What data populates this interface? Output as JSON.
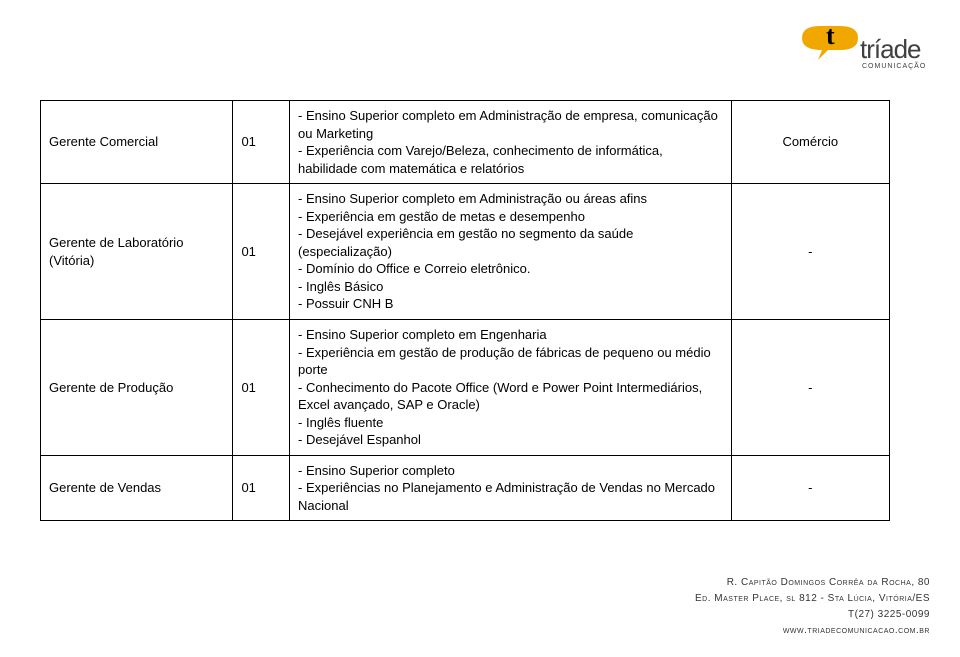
{
  "logo": {
    "brand": "tríade",
    "sub": "COMUNICAÇÃO"
  },
  "table": {
    "rows": [
      {
        "role": "Gerente Comercial",
        "qty": "01",
        "desc": "- Ensino Superior completo em Administração de empresa, comunicação ou Marketing\n- Experiência com Varejo/Beleza, conhecimento de informática, habilidade com matemática e relatórios",
        "sector": "Comércio"
      },
      {
        "role": "Gerente de Laboratório (Vitória)",
        "qty": "01",
        "desc": "- Ensino Superior completo em Administração ou áreas afins\n- Experiência em gestão de metas e desempenho\n- Desejável experiência em gestão no segmento da saúde (especialização)\n- Domínio do Office e Correio eletrônico.\n- Inglês Básico\n- Possuir CNH B",
        "sector": "-"
      },
      {
        "role": "Gerente de Produção",
        "qty": "01",
        "desc": "- Ensino Superior completo em Engenharia\n- Experiência em gestão de produção de fábricas de pequeno ou médio porte\n- Conhecimento do Pacote Office (Word e Power Point Intermediários, Excel avançado, SAP e Oracle)\n- Inglês fluente\n- Desejável Espanhol",
        "sector": "-"
      },
      {
        "role": "Gerente de Vendas",
        "qty": "01",
        "desc": "- Ensino Superior completo\n- Experiências no Planejamento e Administração de Vendas no Mercado Nacional",
        "sector": "-"
      }
    ]
  },
  "footer": {
    "line1": "R. Capitão Domingos Corrêa da Rocha, 80",
    "line2": "Ed. Master Place, sl 812 - Sta Lúcia, Vitória/ES",
    "line3": "T(27) 3225-0099",
    "line4": "www.triadecomunicacao.com.br"
  },
  "colors": {
    "accent": "#f0a800",
    "text": "#000000",
    "border": "#000000",
    "bg": "#ffffff"
  },
  "typography": {
    "base_size": 13,
    "footer_size": 10
  }
}
